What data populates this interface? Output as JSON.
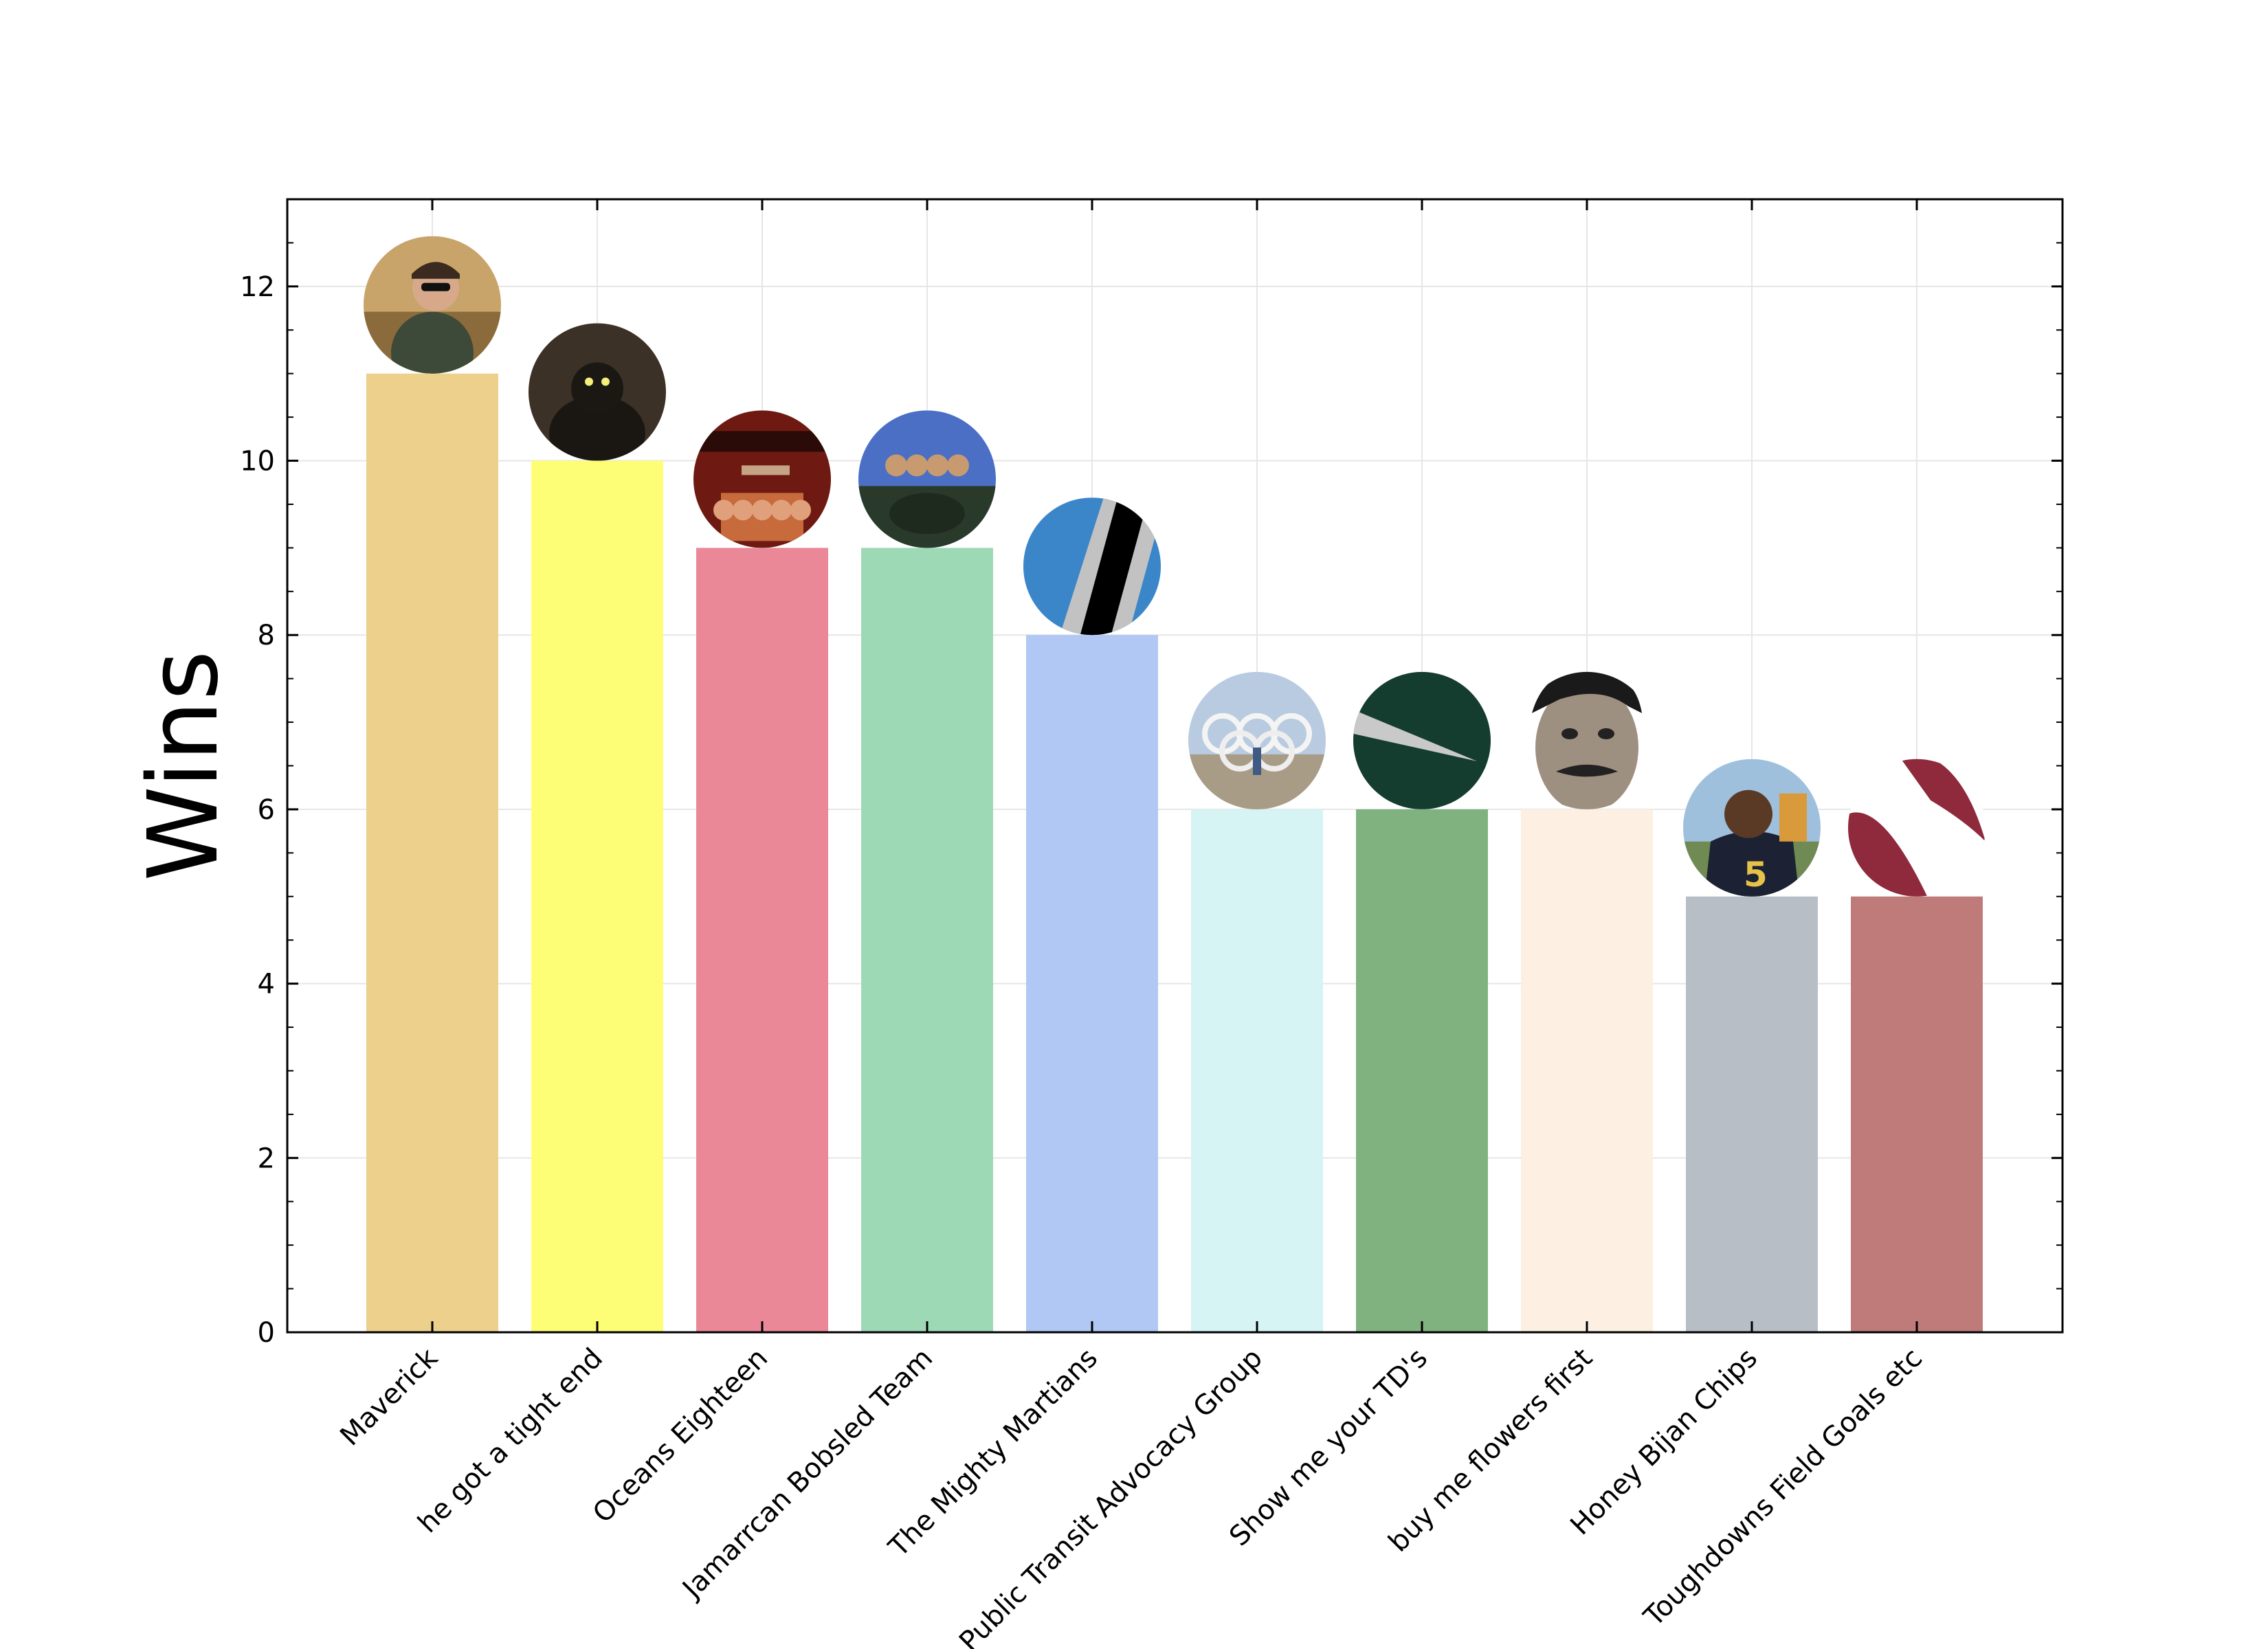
{
  "chart_data": {
    "type": "bar",
    "title": "",
    "xlabel": "",
    "ylabel": "Wins",
    "ylim": [
      0,
      13
    ],
    "yticks": [
      0,
      2,
      4,
      6,
      8,
      10,
      12
    ],
    "grid": true,
    "categories": [
      "Maverick",
      "he got a tight end",
      "Oceans Eighteen",
      "Jamarrcan Bobsled Team",
      "The Mighty Martians",
      "Public Transit Advocacy Group",
      "Show me your TD's",
      "buy me flowers first",
      "Honey Bijan Chips",
      "Toughdowns Field Goals etc"
    ],
    "values": [
      11,
      10,
      9,
      9,
      8,
      6,
      6,
      6,
      5,
      5
    ],
    "colors": [
      "#ecd08c",
      "#fdfd76",
      "#ea8898",
      "#9ed9b6",
      "#b0c8f3",
      "#d6f4f4",
      "#80b27f",
      "#fdefe1",
      "#b8bec5",
      "#bf7b7a"
    ],
    "icons": [
      "pilot-avatar-icon",
      "black-cat-avatar-icon",
      "oceans-eighteen-poster-icon",
      "bobsled-team-avatar-icon",
      "striped-logo-icon",
      "olympic-rings-avatar-icon",
      "green-pie-logo-icon",
      "mustache-portrait-icon",
      "football-player-avatar-icon",
      "maroon-swoosh-logo-icon"
    ]
  }
}
